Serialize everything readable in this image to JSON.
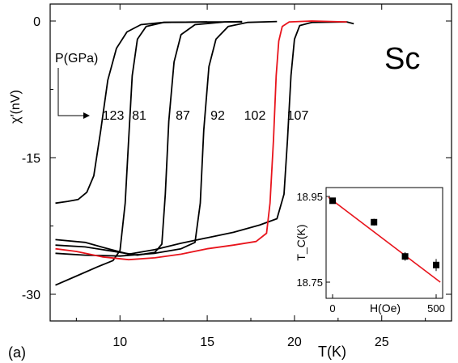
{
  "chart_data": [
    {
      "type": "line",
      "panel_label": "(a)",
      "element_label": "Sc",
      "xlabel": "T(K)",
      "ylabel": "χ′(nV)",
      "xlim": [
        6,
        29
      ],
      "ylim": [
        -32,
        0
      ],
      "xticks": [
        10,
        15,
        20,
        25
      ],
      "yticks": [
        0,
        -15,
        -30
      ],
      "pressure_label": "P(GPa)",
      "series": [
        {
          "name": "123",
          "color": "#000000",
          "points": [
            [
              6.3,
              -20
            ],
            [
              7,
              -19.8
            ],
            [
              7.6,
              -19.6
            ],
            [
              8.1,
              -18.8
            ],
            [
              8.5,
              -17
            ],
            [
              8.9,
              -12
            ],
            [
              9.3,
              -6.5
            ],
            [
              9.8,
              -3
            ],
            [
              10.4,
              -1.2
            ],
            [
              11.2,
              -0.4
            ],
            [
              12.5,
              -0.15
            ],
            [
              15,
              -0.1
            ],
            [
              17,
              -0.1
            ]
          ]
        },
        {
          "name": "81",
          "color": "#000000",
          "points": [
            [
              6.3,
              -29
            ],
            [
              7.5,
              -28
            ],
            [
              8.7,
              -27
            ],
            [
              9.6,
              -26.3
            ],
            [
              10.0,
              -25.2
            ],
            [
              10.3,
              -20
            ],
            [
              10.5,
              -13
            ],
            [
              10.7,
              -6
            ],
            [
              11.0,
              -2
            ],
            [
              11.5,
              -0.6
            ],
            [
              12.5,
              -0.15
            ],
            [
              15,
              -0.1
            ]
          ]
        },
        {
          "name": "87",
          "color": "#000000",
          "points": [
            [
              6.3,
              -24.6
            ],
            [
              8,
              -24.8
            ],
            [
              10,
              -25.4
            ],
            [
              11,
              -25.7
            ],
            [
              12,
              -25.4
            ],
            [
              12.4,
              -24.5
            ],
            [
              12.6,
              -19
            ],
            [
              12.8,
              -11
            ],
            [
              13.1,
              -4.5
            ],
            [
              13.5,
              -1.5
            ],
            [
              14.3,
              -0.4
            ],
            [
              16,
              -0.1
            ],
            [
              17,
              -0.05
            ]
          ]
        },
        {
          "name": "92",
          "color": "#000000",
          "points": [
            [
              6.3,
              -25.5
            ],
            [
              8,
              -25.7
            ],
            [
              10,
              -25.8
            ],
            [
              12,
              -25.5
            ],
            [
              13.5,
              -25.0
            ],
            [
              14.3,
              -24.3
            ],
            [
              14.6,
              -20
            ],
            [
              14.8,
              -12
            ],
            [
              15.1,
              -5
            ],
            [
              15.5,
              -2
            ],
            [
              16.2,
              -0.6
            ],
            [
              17.3,
              -0.15
            ],
            [
              19,
              -0.05
            ]
          ]
        },
        {
          "name": "102",
          "color": "#e8141c",
          "points": [
            [
              6.3,
              -25.0
            ],
            [
              7.5,
              -25.3
            ],
            [
              9,
              -25.9
            ],
            [
              10.5,
              -26.2
            ],
            [
              12,
              -26.0
            ],
            [
              13.5,
              -25.6
            ],
            [
              15,
              -25.0
            ],
            [
              16.5,
              -24.6
            ],
            [
              17.8,
              -24.2
            ],
            [
              18.4,
              -23.3
            ],
            [
              18.6,
              -20
            ],
            [
              18.8,
              -13
            ],
            [
              18.95,
              -6
            ],
            [
              19.1,
              -2.2
            ],
            [
              19.3,
              -0.6
            ],
            [
              19.7,
              -0.1
            ],
            [
              21,
              0
            ],
            [
              23,
              -0.1
            ]
          ]
        },
        {
          "name": "107",
          "color": "#000000",
          "points": [
            [
              6.3,
              -24.0
            ],
            [
              8,
              -24.3
            ],
            [
              9.5,
              -25.1
            ],
            [
              10.5,
              -25.6
            ],
            [
              12,
              -25.1
            ],
            [
              13.5,
              -24.4
            ],
            [
              15,
              -23.8
            ],
            [
              16.5,
              -23.2
            ],
            [
              18,
              -22.4
            ],
            [
              19,
              -21.7
            ],
            [
              19.4,
              -19
            ],
            [
              19.6,
              -13
            ],
            [
              19.8,
              -6
            ],
            [
              20.0,
              -2
            ],
            [
              20.3,
              -0.5
            ],
            [
              21,
              -0.15
            ],
            [
              23,
              -0.1
            ],
            [
              23.4,
              -0.3
            ]
          ]
        }
      ]
    },
    {
      "type": "scatter",
      "inset": true,
      "xlabel": "H(Oe)",
      "ylabel": "T_C(K)",
      "xlim": [
        -20,
        520
      ],
      "ylim": [
        18.75,
        18.95
      ],
      "xticks": [
        "0",
        "500"
      ],
      "yticks": [
        "18.95",
        "18.75"
      ],
      "points": [
        {
          "x": 0,
          "y": 18.94,
          "err": 0.004
        },
        {
          "x": 200,
          "y": 18.89,
          "err": 0.008
        },
        {
          "x": 350,
          "y": 18.81,
          "err": 0.01
        },
        {
          "x": 500,
          "y": 18.79,
          "err": 0.014
        }
      ],
      "fit_line": {
        "color": "#e8141c",
        "points": [
          [
            -20,
            18.948
          ],
          [
            520,
            18.75
          ]
        ]
      }
    }
  ]
}
